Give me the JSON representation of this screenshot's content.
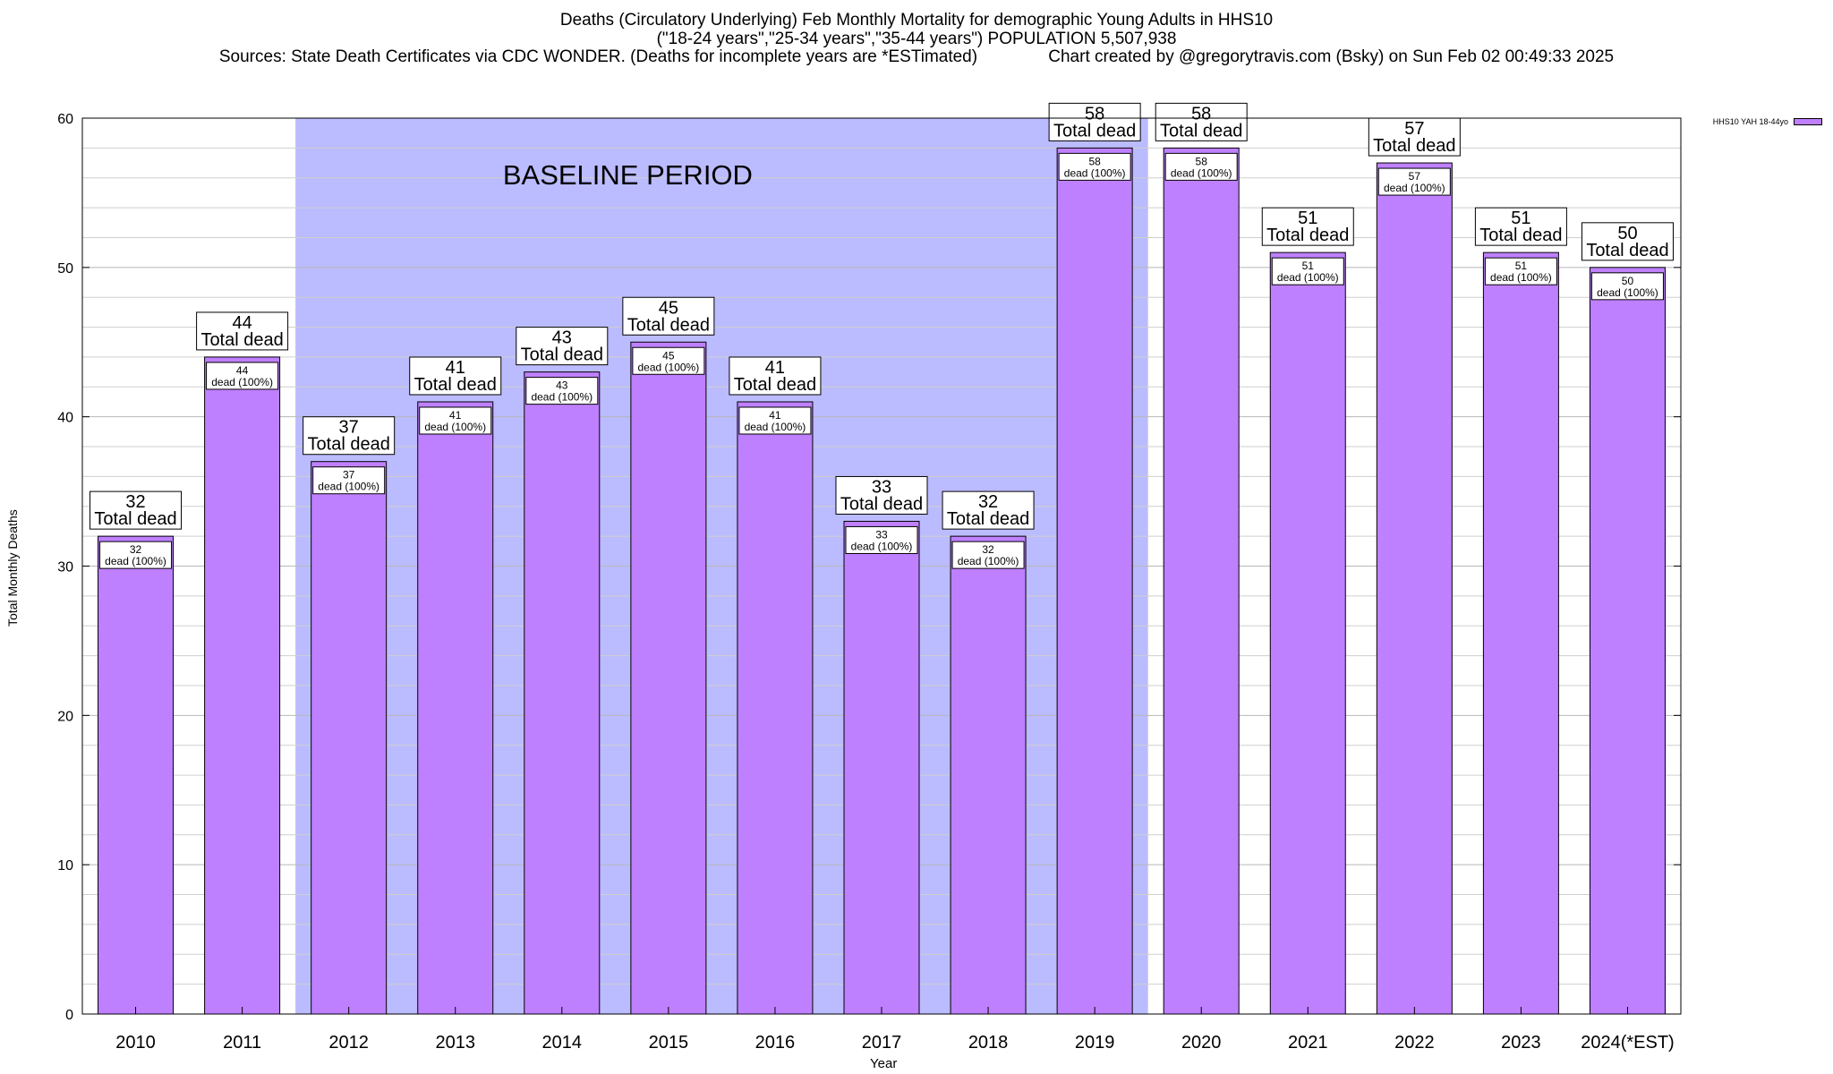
{
  "chart_data": {
    "type": "bar",
    "title": "Deaths (Circulatory Underlying) Feb Monthly Mortality for demographic Young Adults in HHS10",
    "subtitle": "(\"18-24 years\",\"25-34 years\",\"35-44 years\") POPULATION 5,507,938",
    "sources": "Sources: State Death Certificates via CDC WONDER. (Deaths for incomplete years are *ESTimated)",
    "credit": "Chart created by @gregorytravis.com (Bsky) on Sun Feb 02 00:49:33 2025",
    "xlabel": "Year",
    "ylabel": "Total Monthly Deaths",
    "ylim": [
      0,
      60
    ],
    "yticks": [
      0,
      10,
      20,
      30,
      40,
      50,
      60
    ],
    "grid": true,
    "legend_position": "top-right",
    "categories": [
      "2010",
      "2011",
      "2012",
      "2013",
      "2014",
      "2015",
      "2016",
      "2017",
      "2018",
      "2019",
      "2020",
      "2021",
      "2022",
      "2023",
      "2024(*EST)"
    ],
    "series": [
      {
        "name": "HHS10 YAH 18-44yo",
        "color": "#bf80ff",
        "values": [
          32,
          44,
          37,
          41,
          43,
          45,
          41,
          33,
          32,
          58,
          58,
          51,
          57,
          51,
          50
        ]
      }
    ],
    "total_label_suffix": "Total dead",
    "inner_label_suffix": "dead (100%)",
    "annotation": {
      "text": "BASELINE PERIOD",
      "start_category": "2012",
      "end_category": "2019",
      "color": "#bbbbff"
    }
  }
}
